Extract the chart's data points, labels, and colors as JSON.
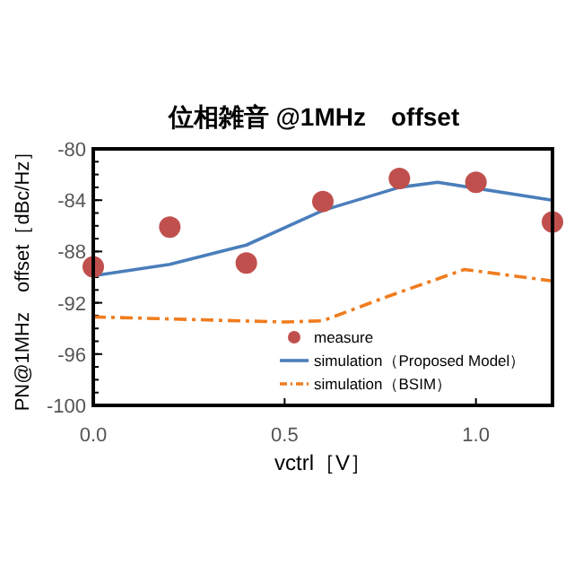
{
  "chart_data": {
    "type": "scatter",
    "title": "位相雑音 @1MHz　offset",
    "xlabel": "vctrl［V］",
    "ylabel": "PN@1MHz　offset［dBc/Hz］",
    "xlim": [
      0,
      1.2
    ],
    "ylim": [
      -100,
      -80
    ],
    "xticks": [
      {
        "value": 0,
        "label": "0.0"
      },
      0.5,
      {
        "value": 1,
        "label": "1.0"
      }
    ],
    "yticks": [
      -100,
      -96,
      -92,
      -88,
      -84,
      -80
    ],
    "grid": false,
    "legend": "bottom right",
    "series": [
      {
        "name": "measure",
        "marker": "circle",
        "color": "#c0504d",
        "x": [
          0,
          0.2,
          0.4,
          0.6,
          0.8,
          1.0,
          1.2
        ],
        "values": [
          -89.2,
          -86.1,
          -88.9,
          -84.1,
          -82.3,
          -82.6,
          -85.7
        ]
      },
      {
        "name": "simulation（Proposed Model）",
        "type": "line",
        "line_style": "solid",
        "color": "#4a7ebb",
        "x": [
          0,
          0.2,
          0.4,
          0.6,
          0.8,
          0.9,
          1.2
        ],
        "values": [
          -89.9,
          -89.0,
          -87.5,
          -84.8,
          -83.0,
          -82.6,
          -84.0
        ]
      },
      {
        "name": "simulation（BSIM）",
        "type": "line",
        "line_style": "dash-dot",
        "color": "#f07c1e",
        "x": [
          0,
          0.5,
          0.6,
          0.77,
          0.97,
          1.2
        ],
        "values": [
          -93.1,
          -93.5,
          -93.4,
          -91.5,
          -89.4,
          -90.3
        ]
      }
    ]
  }
}
